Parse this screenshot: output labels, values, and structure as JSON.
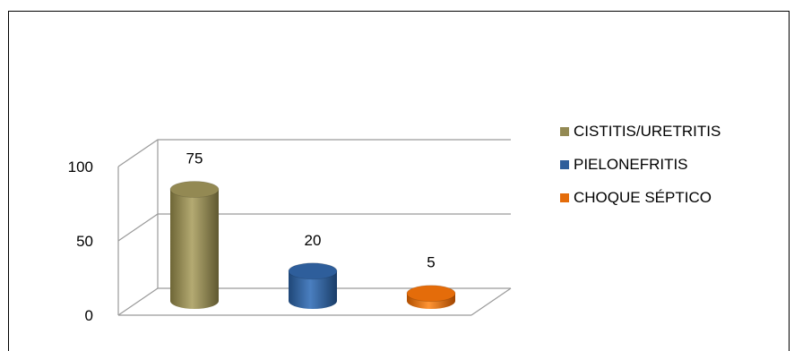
{
  "chart_data": {
    "type": "bar",
    "categories": [
      "CISTITIS/URETRITIS",
      "PIELONEFRITIS",
      "CHOQUE SÉPTICO"
    ],
    "values": [
      75,
      20,
      5
    ],
    "data_labels": [
      "75",
      "20",
      "5"
    ],
    "ylim": [
      0,
      100
    ],
    "yticks": [
      "0",
      "50",
      "100"
    ],
    "title": "",
    "xlabel": "",
    "ylabel": "",
    "grid": true,
    "legend_position": "right",
    "colors": [
      "#938953",
      "#2e5e9b",
      "#e46c0a"
    ]
  },
  "legend": {
    "items": [
      "CISTITIS/URETRITIS",
      "PIELONEFRITIS",
      "CHOQUE SÉPTICO"
    ]
  }
}
